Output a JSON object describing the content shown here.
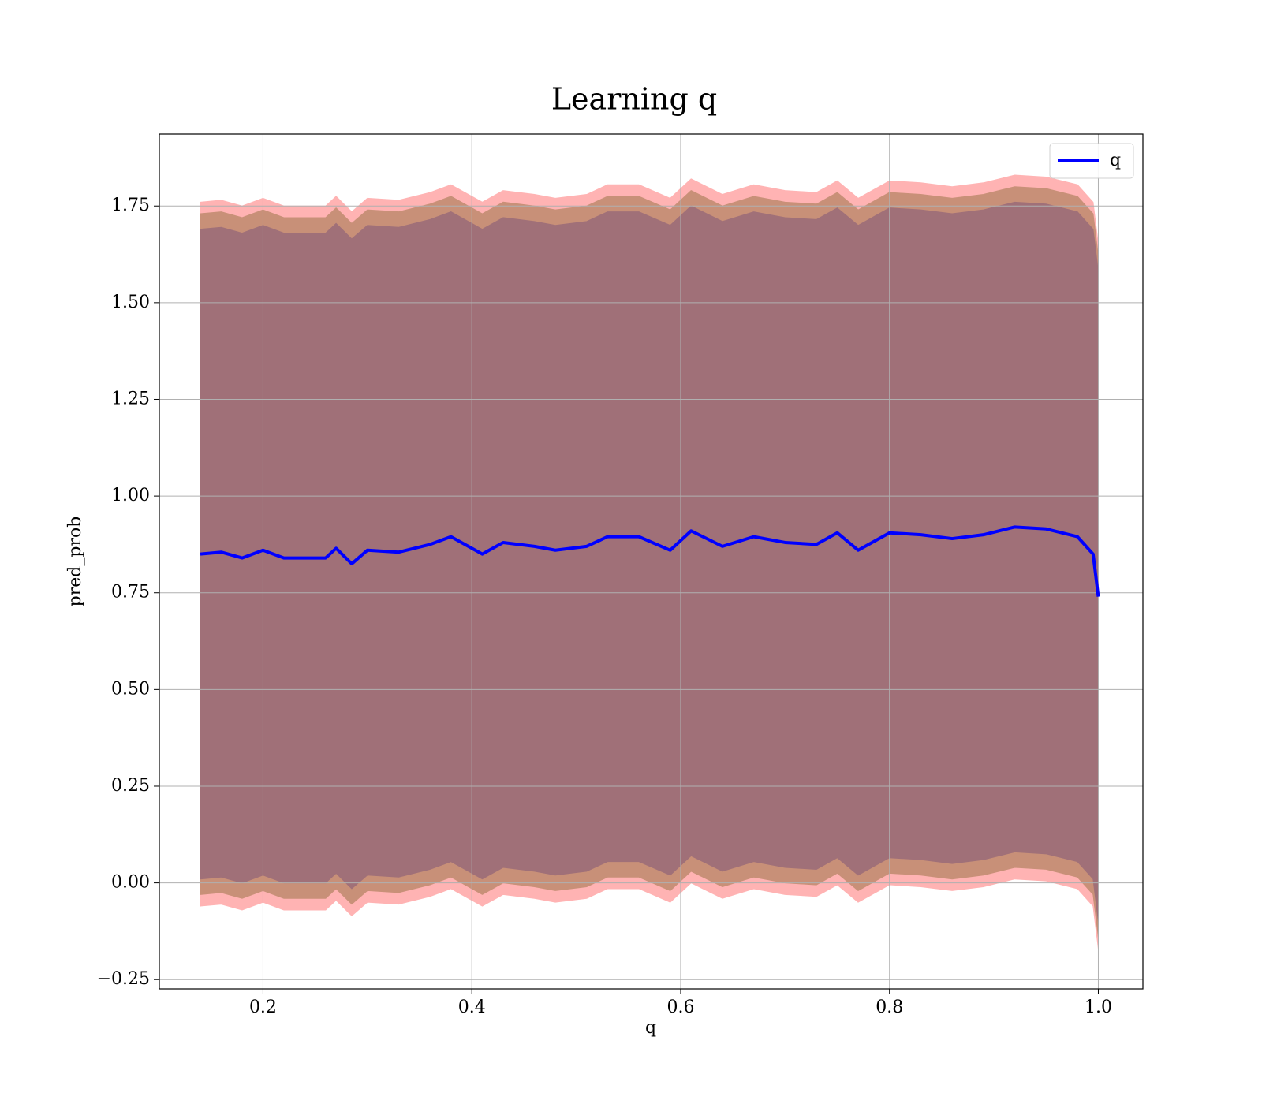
{
  "chart_data": {
    "type": "line",
    "title": "Learning q",
    "xlabel": "q",
    "ylabel": "pred_prob",
    "x": [
      0.14,
      0.16,
      0.18,
      0.2,
      0.22,
      0.24,
      0.26,
      0.27,
      0.285,
      0.3,
      0.33,
      0.36,
      0.38,
      0.41,
      0.43,
      0.46,
      0.48,
      0.51,
      0.53,
      0.56,
      0.59,
      0.61,
      0.64,
      0.67,
      0.7,
      0.73,
      0.75,
      0.77,
      0.8,
      0.83,
      0.86,
      0.89,
      0.92,
      0.95,
      0.98,
      0.995,
      1.0
    ],
    "series": [
      {
        "name": "q",
        "color": "#0000ff",
        "values": [
          0.85,
          0.855,
          0.84,
          0.86,
          0.84,
          0.84,
          0.84,
          0.865,
          0.825,
          0.86,
          0.855,
          0.875,
          0.895,
          0.85,
          0.88,
          0.87,
          0.86,
          0.87,
          0.895,
          0.895,
          0.86,
          0.91,
          0.87,
          0.895,
          0.88,
          0.875,
          0.905,
          0.86,
          0.905,
          0.9,
          0.89,
          0.9,
          0.92,
          0.915,
          0.895,
          0.85,
          0.74
        ]
      }
    ],
    "bands": [
      {
        "color": "#ffb3b3",
        "upper": [
          1.76,
          1.765,
          1.75,
          1.77,
          1.75,
          1.75,
          1.75,
          1.775,
          1.735,
          1.77,
          1.765,
          1.785,
          1.805,
          1.76,
          1.79,
          1.78,
          1.77,
          1.78,
          1.805,
          1.805,
          1.77,
          1.82,
          1.78,
          1.805,
          1.79,
          1.785,
          1.815,
          1.77,
          1.815,
          1.81,
          1.8,
          1.81,
          1.83,
          1.825,
          1.805,
          1.76,
          1.65
        ],
        "lower": [
          -0.06,
          -0.055,
          -0.07,
          -0.05,
          -0.07,
          -0.07,
          -0.07,
          -0.045,
          -0.085,
          -0.05,
          -0.055,
          -0.035,
          -0.015,
          -0.06,
          -0.03,
          -0.04,
          -0.05,
          -0.04,
          -0.015,
          -0.015,
          -0.05,
          0,
          -0.04,
          -0.015,
          -0.03,
          -0.035,
          -0.005,
          -0.05,
          -0.005,
          -0.01,
          -0.02,
          -0.01,
          0.01,
          0.005,
          -0.015,
          -0.06,
          -0.17
        ]
      },
      {
        "color": "#c89078",
        "upper": [
          1.73,
          1.735,
          1.72,
          1.74,
          1.72,
          1.72,
          1.72,
          1.745,
          1.705,
          1.74,
          1.735,
          1.755,
          1.775,
          1.73,
          1.76,
          1.75,
          1.74,
          1.75,
          1.775,
          1.775,
          1.74,
          1.79,
          1.75,
          1.775,
          1.76,
          1.755,
          1.785,
          1.74,
          1.785,
          1.78,
          1.77,
          1.78,
          1.8,
          1.795,
          1.775,
          1.73,
          1.62
        ],
        "lower": [
          -0.03,
          -0.025,
          -0.04,
          -0.02,
          -0.04,
          -0.04,
          -0.04,
          -0.015,
          -0.055,
          -0.02,
          -0.025,
          -0.005,
          0.015,
          -0.03,
          0,
          -0.01,
          -0.02,
          -0.01,
          0.015,
          0.015,
          -0.02,
          0.03,
          -0.01,
          0.015,
          0,
          -0.005,
          0.025,
          -0.02,
          0.025,
          0.02,
          0.01,
          0.02,
          0.04,
          0.035,
          0.015,
          -0.03,
          -0.14
        ]
      },
      {
        "color": "#a07078",
        "upper": [
          1.69,
          1.695,
          1.68,
          1.7,
          1.68,
          1.68,
          1.68,
          1.705,
          1.665,
          1.7,
          1.695,
          1.715,
          1.735,
          1.69,
          1.72,
          1.71,
          1.7,
          1.71,
          1.735,
          1.735,
          1.7,
          1.75,
          1.71,
          1.735,
          1.72,
          1.715,
          1.745,
          1.7,
          1.745,
          1.74,
          1.73,
          1.74,
          1.76,
          1.755,
          1.735,
          1.69,
          1.58
        ],
        "lower": [
          0.01,
          0.015,
          0,
          0.02,
          0,
          0,
          0,
          0.025,
          -0.015,
          0.02,
          0.015,
          0.035,
          0.055,
          0.01,
          0.04,
          0.03,
          0.02,
          0.03,
          0.055,
          0.055,
          0.02,
          0.07,
          0.03,
          0.055,
          0.04,
          0.035,
          0.065,
          0.02,
          0.065,
          0.06,
          0.05,
          0.06,
          0.08,
          0.075,
          0.055,
          0.01,
          -0.1
        ]
      }
    ],
    "xlim": [
      0.1007,
      1.0427
    ],
    "ylim": [
      -0.274,
      1.936
    ],
    "xticks": [
      0.2,
      0.4,
      0.6,
      0.8,
      {
        "value": 1,
        "label": "1.0"
      }
    ],
    "yticks": [
      {
        "value": -0.25,
        "label": "−0.25"
      },
      {
        "value": 0,
        "label": "0.00"
      },
      {
        "value": 0.25,
        "label": "0.25"
      },
      {
        "value": 0.5,
        "label": "0.50"
      },
      {
        "value": 0.75,
        "label": "0.75"
      },
      {
        "value": 1,
        "label": "1.00"
      },
      {
        "value": 1.25,
        "label": "1.25"
      },
      {
        "value": 1.5,
        "label": "1.50"
      },
      {
        "value": 1.75,
        "label": "1.75"
      }
    ],
    "grid": true,
    "legend": "upper right"
  }
}
